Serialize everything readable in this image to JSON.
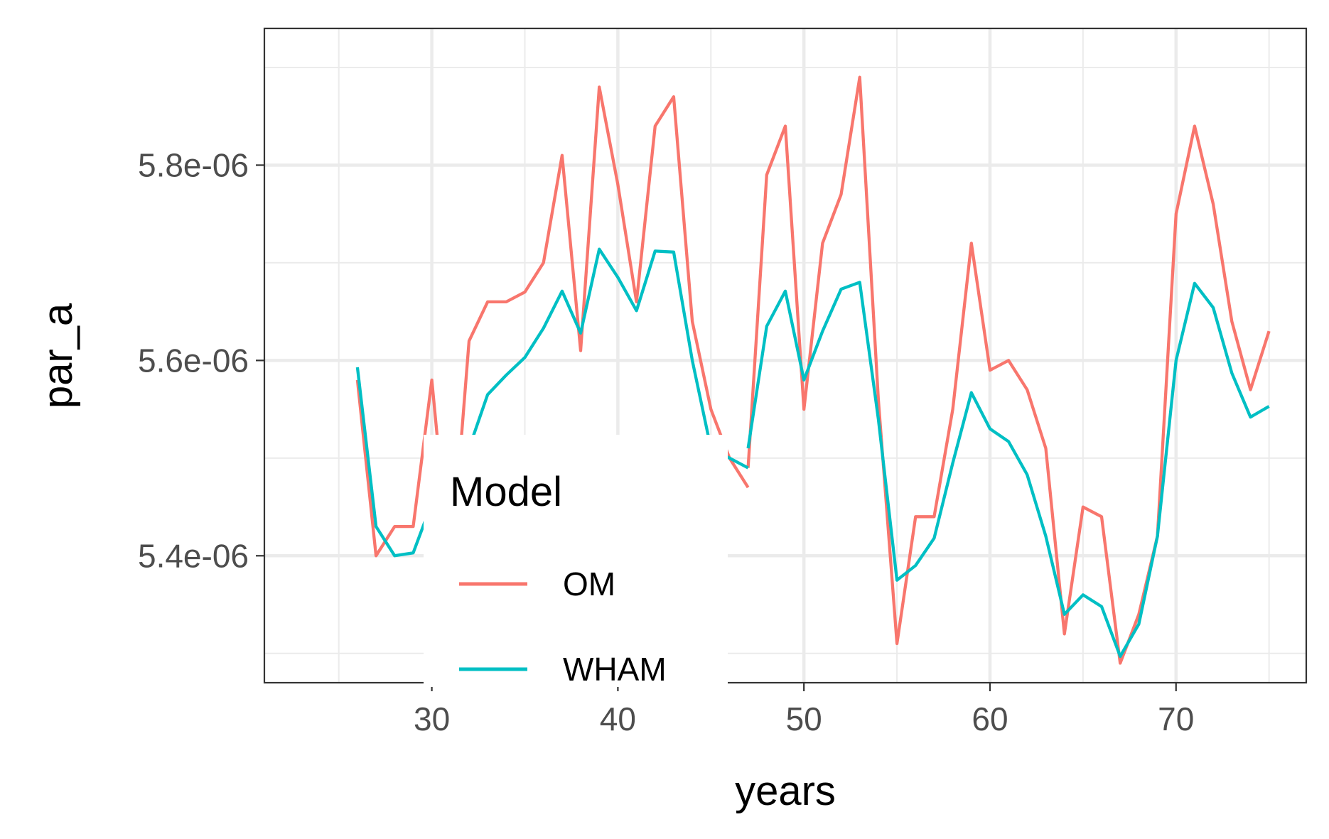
{
  "chart_data": {
    "type": "line",
    "xlabel": "years",
    "ylabel": "par_a",
    "xlim": [
      21,
      77
    ],
    "ylim": [
      5.27e-06,
      5.94e-06
    ],
    "x_ticks": [
      30,
      40,
      50,
      60,
      70
    ],
    "x_tick_labels": [
      "30",
      "40",
      "50",
      "60",
      "70"
    ],
    "y_ticks": [
      5.4e-06,
      5.6e-06,
      5.8e-06
    ],
    "y_tick_labels": [
      "5.4e-06",
      "5.6e-06",
      "5.8e-06"
    ],
    "grid": true,
    "legend": {
      "title": "Model",
      "placement": "inside-bottom-left",
      "entries": [
        "OM",
        "WHAM"
      ]
    },
    "series": [
      {
        "name": "OM",
        "color": "#F8766D",
        "segments": [
          {
            "x": [
              26,
              27,
              28,
              29,
              30,
              31,
              32,
              33,
              34,
              35,
              36,
              37,
              38,
              39,
              40,
              41,
              42,
              43,
              44,
              45,
              46,
              47
            ],
            "y": [
              5.58e-06,
              5.4e-06,
              5.43e-06,
              5.43e-06,
              5.58e-06,
              5.38e-06,
              5.62e-06,
              5.66e-06,
              5.66e-06,
              5.67e-06,
              5.7e-06,
              5.81e-06,
              5.61e-06,
              5.88e-06,
              5.78e-06,
              5.66e-06,
              5.84e-06,
              5.87e-06,
              5.64e-06,
              5.55e-06,
              5.5e-06,
              5.47e-06
            ]
          },
          {
            "x": [
              47,
              48,
              49,
              50,
              51,
              52,
              53,
              54,
              55,
              56,
              57,
              58,
              59,
              60,
              61,
              62,
              63,
              64,
              65,
              66,
              67,
              68,
              69,
              70,
              71,
              72,
              73,
              74,
              75
            ],
            "y": [
              5.49e-06,
              5.79e-06,
              5.84e-06,
              5.55e-06,
              5.72e-06,
              5.77e-06,
              5.89e-06,
              5.56e-06,
              5.31e-06,
              5.44e-06,
              5.44e-06,
              5.55e-06,
              5.72e-06,
              5.59e-06,
              5.6e-06,
              5.57e-06,
              5.51e-06,
              5.32e-06,
              5.45e-06,
              5.44e-06,
              5.29e-06,
              5.34e-06,
              5.42e-06,
              5.75e-06,
              5.84e-06,
              5.76e-06,
              5.64e-06,
              5.57e-06,
              5.63e-06
            ]
          }
        ]
      },
      {
        "name": "WHAM",
        "color": "#00BFC4",
        "segments": [
          {
            "x": [
              26,
              27,
              28,
              29,
              30,
              31,
              32,
              33,
              34,
              35,
              36,
              37,
              38,
              39,
              40,
              41,
              42,
              43,
              44,
              45,
              46,
              47
            ],
            "y": [
              5.593e-06,
              5.43e-06,
              5.4e-06,
              5.403e-06,
              5.454e-06,
              5.415e-06,
              5.51e-06,
              5.565e-06,
              5.585e-06,
              5.603e-06,
              5.633e-06,
              5.671e-06,
              5.628e-06,
              5.714e-06,
              5.685e-06,
              5.651e-06,
              5.712e-06,
              5.711e-06,
              5.6e-06,
              5.51e-06,
              5.5e-06,
              5.49e-06
            ]
          },
          {
            "x": [
              47,
              48,
              49,
              50,
              51,
              52,
              53,
              54,
              55,
              56,
              57,
              58,
              59,
              60,
              61,
              62,
              63,
              64,
              65,
              66,
              67,
              68,
              69,
              70,
              71,
              72,
              73,
              74,
              75
            ],
            "y": [
              5.51e-06,
              5.635e-06,
              5.671e-06,
              5.58e-06,
              5.63e-06,
              5.673e-06,
              5.68e-06,
              5.54e-06,
              5.375e-06,
              5.39e-06,
              5.418e-06,
              5.495e-06,
              5.567e-06,
              5.53e-06,
              5.517e-06,
              5.483e-06,
              5.42e-06,
              5.34e-06,
              5.36e-06,
              5.348e-06,
              5.297e-06,
              5.33e-06,
              5.42e-06,
              5.6e-06,
              5.679e-06,
              5.654e-06,
              5.587e-06,
              5.542e-06,
              5.553e-06
            ]
          }
        ]
      }
    ]
  }
}
